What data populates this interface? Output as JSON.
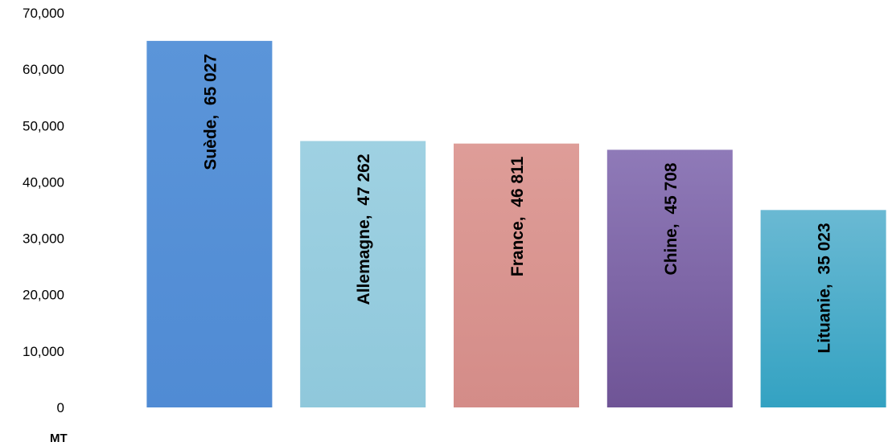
{
  "chart_data": {
    "type": "bar",
    "categories": [
      "Suède",
      "Allemagne",
      "France",
      "Chine",
      "Lituanie"
    ],
    "values": [
      65027,
      47262,
      46811,
      45708,
      35023
    ],
    "data_labels": [
      "Suède,  65 027",
      "Allemagne,  47 262",
      "France,  46 811",
      "Chine,  45 708",
      "Lituanie,  35 023"
    ],
    "title": "",
    "xlabel": "",
    "ylabel": "MT",
    "ylim": [
      0,
      70000
    ],
    "yticks": [
      0,
      10000,
      20000,
      30000,
      40000,
      50000,
      60000,
      70000
    ],
    "ytick_labels": [
      "0",
      "10,000",
      "20,000",
      "30,000",
      "40,000",
      "50,000",
      "60,000",
      "70,000"
    ],
    "grid": false,
    "legend": "none",
    "bar_colors": [
      [
        "#5b95d9",
        "#508bd4"
      ],
      [
        "#9fd1e2",
        "#8fc8db"
      ],
      [
        "#de9d98",
        "#d48c88"
      ],
      [
        "#8f7ab8",
        "#6f5496"
      ],
      [
        "#6ab9d3",
        "#33a2c2"
      ]
    ]
  }
}
